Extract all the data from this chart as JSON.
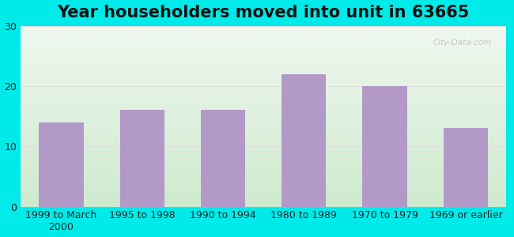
{
  "title": "Year householders moved into unit in 63665",
  "categories": [
    "1999 to March\n2000",
    "1995 to 1998",
    "1990 to 1994",
    "1980 to 1989",
    "1970 to 1979",
    "1969 or earlier"
  ],
  "values": [
    14,
    16,
    16,
    22,
    20,
    13
  ],
  "bar_color": "#b399c8",
  "ylim": [
    0,
    30
  ],
  "yticks": [
    0,
    10,
    20,
    30
  ],
  "background_outer": "#00eaea",
  "background_inner_bottom": "#ceeace",
  "background_inner_top": "#f0f8f0",
  "grid_color": "#dddddd",
  "title_fontsize": 15,
  "tick_fontsize": 9,
  "watermark": "City-Data.com",
  "watermark_color": "#c8c8c8"
}
